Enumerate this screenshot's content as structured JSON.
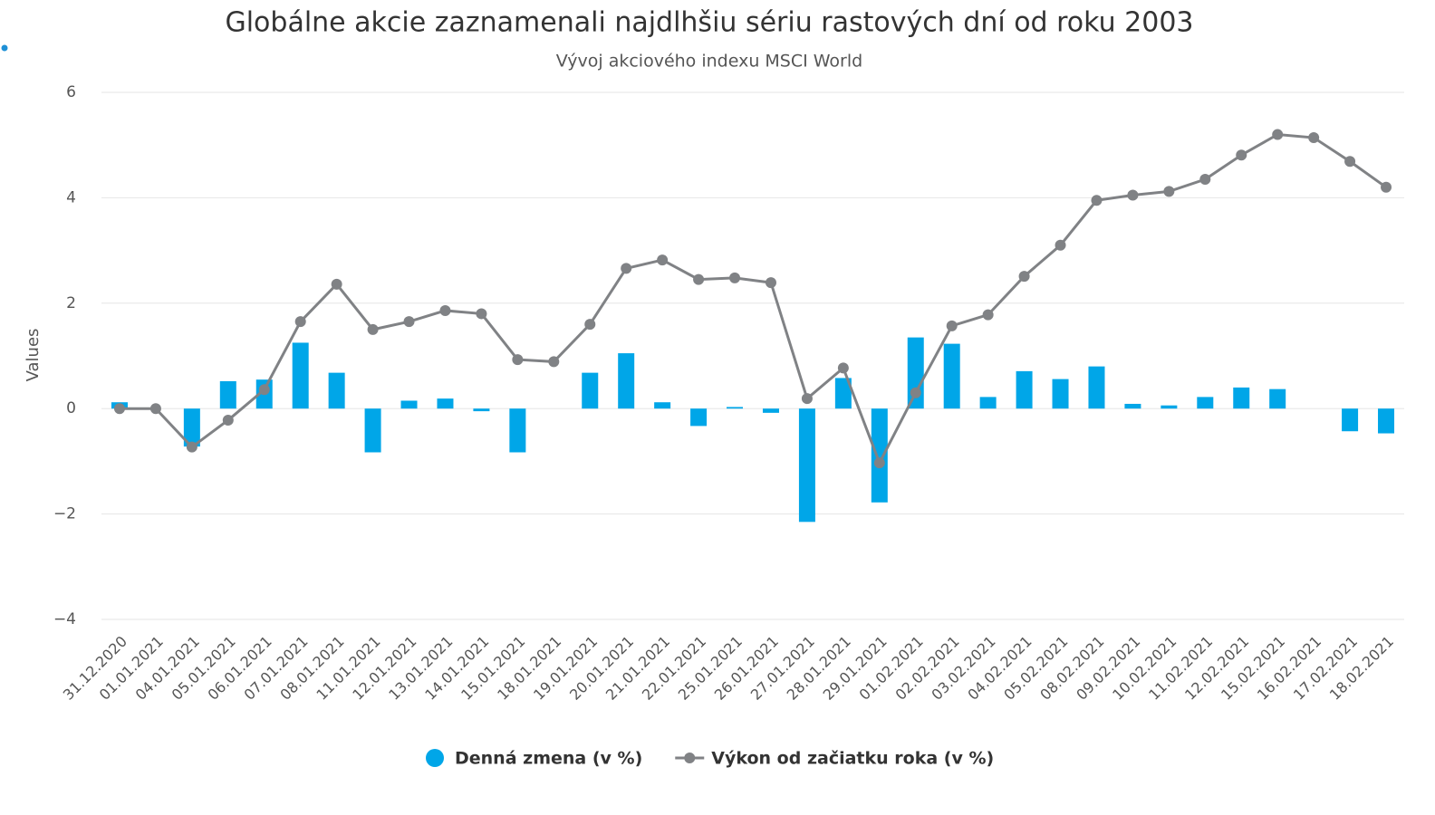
{
  "chart_data": {
    "type": "bar-line",
    "title": "Globálne akcie zaznamenali najdlhšiu sériu rastových dní od roku 2003",
    "subtitle": "Vývoj akciového indexu MSCI World",
    "y_label": "Values",
    "categories": [
      "31.12.2020",
      "01.01.2021",
      "04.01.2021",
      "05.01.2021",
      "06.01.2021",
      "07.01.2021",
      "08.01.2021",
      "11.01.2021",
      "12.01.2021",
      "13.01.2021",
      "14.01.2021",
      "15.01.2021",
      "18.01.2021",
      "19.01.2021",
      "20.01.2021",
      "21.01.2021",
      "22.01.2021",
      "25.01.2021",
      "26.01.2021",
      "27.01.2021",
      "28.01.2021",
      "29.01.2021",
      "01.02.2021",
      "02.02.2021",
      "03.02.2021",
      "04.02.2021",
      "05.02.2021",
      "08.02.2021",
      "09.02.2021",
      "10.02.2021",
      "11.02.2021",
      "12.02.2021",
      "15.02.2021",
      "16.02.2021",
      "17.02.2021",
      "18.02.2021"
    ],
    "series": [
      {
        "name": "Denná zmena (v %)",
        "kind": "bar",
        "color": "#00a6e8",
        "values": [
          0.12,
          0,
          -0.72,
          0.52,
          0.55,
          1.25,
          0.68,
          -0.83,
          0.15,
          0.19,
          -0.05,
          -0.83,
          0,
          0.68,
          1.05,
          0.12,
          -0.33,
          0.03,
          -0.08,
          -2.15,
          0.58,
          -1.78,
          1.35,
          1.23,
          0.22,
          0.71,
          0.56,
          0.8,
          0.09,
          0.06,
          0.22,
          0.4,
          0.37,
          0,
          -0.43,
          -0.47
        ]
      },
      {
        "name": "Výkon od začiatku roka (v %)",
        "kind": "line",
        "color": "#808285",
        "values": [
          0,
          0,
          -0.73,
          -0.22,
          0.36,
          1.65,
          2.36,
          1.5,
          1.65,
          1.86,
          1.8,
          0.93,
          0.89,
          1.6,
          2.66,
          2.82,
          2.45,
          2.48,
          2.39,
          0.19,
          0.77,
          -1.03,
          0.3,
          1.57,
          1.78,
          2.51,
          3.1,
          3.95,
          4.05,
          4.12,
          4.35,
          4.81,
          5.2,
          5.14,
          4.69,
          4.2
        ]
      }
    ],
    "ylim": [
      -4,
      6
    ],
    "yticks": [
      {
        "value": -4,
        "label": "−4"
      },
      {
        "value": -2,
        "label": "−2"
      },
      0,
      2,
      4,
      6
    ],
    "grid": true
  }
}
